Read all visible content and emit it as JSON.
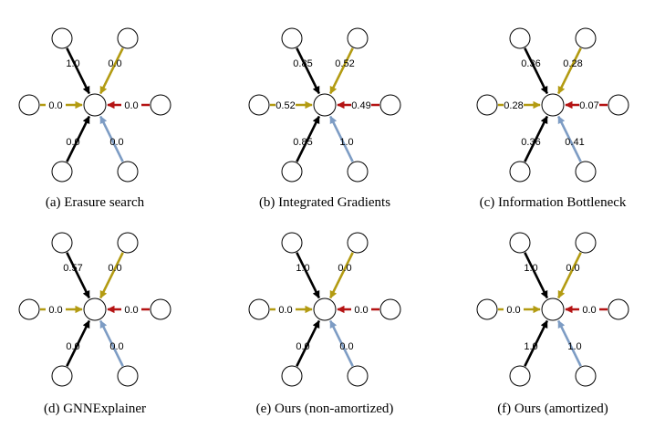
{
  "colors": {
    "black": "#000000",
    "gold": "#b39b12",
    "red": "#b51414",
    "blue": "#7d9cc4"
  },
  "panels": [
    {
      "id": "a",
      "caption": "(a) Erasure search",
      "edges": {
        "top_left": "1.0",
        "top_right": "0.0",
        "left": "0.0",
        "right": "0.0",
        "bottom_left": "0.0",
        "bottom_right": "0.0"
      }
    },
    {
      "id": "b",
      "caption": "(b) Integrated Gradients",
      "edges": {
        "top_left": "0.85",
        "top_right": "0.52",
        "left": "0.52",
        "right": "0.49",
        "bottom_left": "0.85",
        "bottom_right": "1.0"
      }
    },
    {
      "id": "c",
      "caption": "(c) Information Bottleneck",
      "edges": {
        "top_left": "0.36",
        "top_right": "0.28",
        "left": "0.28",
        "right": "0.07",
        "bottom_left": "0.36",
        "bottom_right": "0.41"
      }
    },
    {
      "id": "d",
      "caption": "(d) GNNExplainer",
      "edges": {
        "top_left": "0.57",
        "top_right": "0.0",
        "left": "0.0",
        "right": "0.0",
        "bottom_left": "0.0",
        "bottom_right": "0.0"
      }
    },
    {
      "id": "e",
      "caption": "(e) Ours (non-amortized)",
      "edges": {
        "top_left": "1.0",
        "top_right": "0.0",
        "left": "0.0",
        "right": "0.0",
        "bottom_left": "0.0",
        "bottom_right": "0.0"
      }
    },
    {
      "id": "f",
      "caption": "(f) Ours (amortized)",
      "edges": {
        "top_left": "1.0",
        "top_right": "0.0",
        "left": "0.0",
        "right": "0.0",
        "bottom_left": "1.0",
        "bottom_right": "1.0"
      }
    }
  ]
}
